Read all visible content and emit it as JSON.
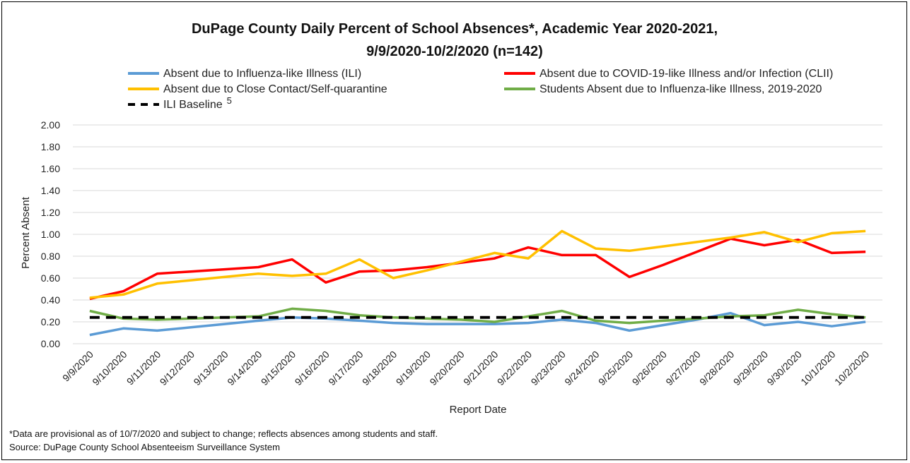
{
  "chart_data": {
    "type": "line",
    "title_line1": "DuPage County Daily Percent of School Absences*, Academic Year 2020-2021,",
    "title_line2": "9/9/2020-10/2/2020 (n=142)",
    "xlabel": "Report Date",
    "ylabel": "Percent Absent",
    "ylim": [
      0,
      2.0
    ],
    "yticks": [
      "0.00",
      "0.20",
      "0.40",
      "0.60",
      "0.80",
      "1.00",
      "1.20",
      "1.40",
      "1.60",
      "1.80",
      "2.00"
    ],
    "categories": [
      "9/9/2020",
      "9/10/2020",
      "9/11/2020",
      "9/12/2020",
      "9/13/2020",
      "9/14/2020",
      "9/15/2020",
      "9/16/2020",
      "9/17/2020",
      "9/18/2020",
      "9/19/2020",
      "9/20/2020",
      "9/21/2020",
      "9/22/2020",
      "9/23/2020",
      "9/24/2020",
      "9/25/2020",
      "9/26/2020",
      "9/27/2020",
      "9/28/2020",
      "9/29/2020",
      "9/30/2020",
      "10/1/2020",
      "10/2/2020"
    ],
    "grid": "horizontal",
    "legend_position": "top",
    "series": [
      {
        "name": "Absent due to Influenza-like Illness (ILI)",
        "color": "#5B9BD5",
        "dash": false,
        "values": [
          0.08,
          0.14,
          0.12,
          0.15,
          0.18,
          0.21,
          0.24,
          0.23,
          0.21,
          0.19,
          0.18,
          0.18,
          0.18,
          0.19,
          0.22,
          0.19,
          0.12,
          0.17,
          0.22,
          0.28,
          0.17,
          0.2,
          0.16,
          0.2
        ]
      },
      {
        "name": "Absent due to COVID-19-like Illness and/or Infection (CLII)",
        "color": "#FF0000",
        "dash": false,
        "values": [
          0.41,
          0.48,
          0.64,
          0.66,
          0.68,
          0.7,
          0.77,
          0.56,
          0.66,
          0.67,
          0.7,
          0.74,
          0.78,
          0.88,
          0.81,
          0.81,
          0.61,
          0.72,
          0.84,
          0.96,
          0.9,
          0.95,
          0.83,
          0.84
        ]
      },
      {
        "name": "Absent due to Close Contact/Self-quarantine",
        "color": "#FFC000",
        "dash": false,
        "values": [
          0.42,
          0.45,
          0.55,
          0.58,
          0.61,
          0.64,
          0.62,
          0.64,
          0.77,
          0.6,
          0.67,
          0.75,
          0.83,
          0.78,
          1.03,
          0.87,
          0.85,
          0.89,
          0.93,
          0.97,
          1.02,
          0.93,
          1.01,
          1.03
        ]
      },
      {
        "name": "Students Absent due to Influenza-like Illness, 2019-2020",
        "color": "#70AD47",
        "dash": false,
        "values": [
          0.3,
          0.23,
          0.22,
          0.23,
          0.24,
          0.25,
          0.32,
          0.3,
          0.26,
          0.24,
          0.23,
          0.22,
          0.2,
          0.25,
          0.3,
          0.21,
          0.19,
          0.21,
          0.23,
          0.25,
          0.26,
          0.31,
          0.27,
          0.24
        ]
      },
      {
        "name": "ILI Baseline",
        "superscript": "5",
        "color": "#000000",
        "dash": true,
        "values": [
          0.24,
          0.24,
          0.24,
          0.24,
          0.24,
          0.24,
          0.24,
          0.24,
          0.24,
          0.24,
          0.24,
          0.24,
          0.24,
          0.24,
          0.24,
          0.24,
          0.24,
          0.24,
          0.24,
          0.24,
          0.24,
          0.24,
          0.24,
          0.24
        ]
      }
    ]
  },
  "footnotes": {
    "note": "*Data are provisional as of 10/7/2020 and subject to change; reflects absences among students and staff.",
    "source": "Source: DuPage County School Absenteeism Surveillance System"
  }
}
